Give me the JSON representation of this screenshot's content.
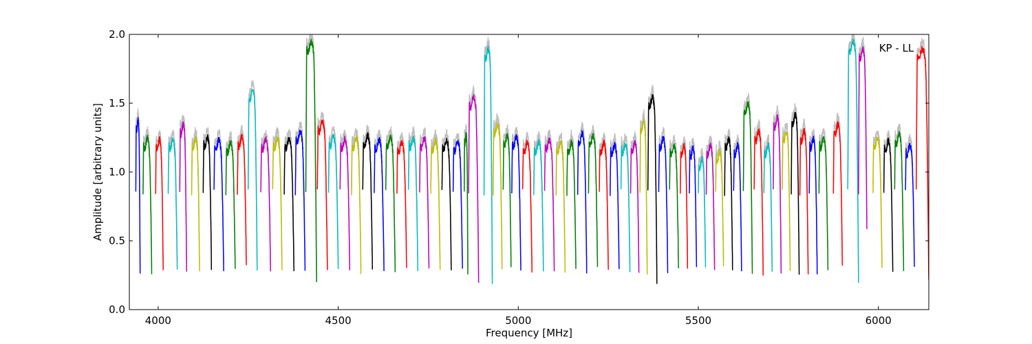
{
  "chart_data": {
    "type": "line",
    "title": "",
    "annotation": "KP - LL",
    "xlabel": "Frequency [MHz]",
    "ylabel": "Amplitude [arbitrary units]",
    "xlim": [
      3920,
      6140
    ],
    "ylim": [
      0.0,
      2.0
    ],
    "xticks": [
      4000,
      4500,
      5000,
      5500,
      6000
    ],
    "yticks": [
      0.0,
      0.5,
      1.0,
      1.5,
      2.0
    ],
    "xtick_labels": [
      "4000",
      "4500",
      "5000",
      "5500",
      "6000"
    ],
    "ytick_labels": [
      "0.0",
      "0.5",
      "1.0",
      "1.5",
      "2.0"
    ],
    "grid": false,
    "color_cycle": [
      "#0000ff",
      "#008000",
      "#ff0000",
      "#00bfbf",
      "#bf00bf",
      "#bfbf00",
      "#000000"
    ],
    "raw_color": "#bfbfbf",
    "series": [
      {
        "color": "#0000ff",
        "x": [
          3938,
          3950
        ],
        "y": [
          1.38,
          0.26
        ]
      },
      {
        "color": "#008000",
        "x": [
          3958,
          3982
        ],
        "y": [
          1.25,
          0.28
        ]
      },
      {
        "color": "#ff0000",
        "x": [
          3993,
          4014
        ],
        "y": [
          1.24,
          0.29
        ]
      },
      {
        "color": "#00bfbf",
        "x": [
          4028,
          4053
        ],
        "y": [
          1.24,
          0.29
        ]
      },
      {
        "color": "#bf00bf",
        "x": [
          4060,
          4079
        ],
        "y": [
          1.35,
          0.28
        ]
      },
      {
        "color": "#bfbf00",
        "x": [
          4093,
          4115
        ],
        "y": [
          1.25,
          0.28
        ]
      },
      {
        "color": "#000000",
        "x": [
          4125,
          4148
        ],
        "y": [
          1.26,
          0.29
        ]
      },
      {
        "color": "#0000ff",
        "x": [
          4155,
          4182
        ],
        "y": [
          1.24,
          0.29
        ]
      },
      {
        "color": "#008000",
        "x": [
          4188,
          4214
        ],
        "y": [
          1.22,
          0.28
        ]
      },
      {
        "color": "#ff0000",
        "x": [
          4220,
          4245
        ],
        "y": [
          1.26,
          0.3
        ]
      },
      {
        "color": "#00bfbf",
        "x": [
          4250,
          4275
        ],
        "y": [
          1.6,
          0.26
        ]
      },
      {
        "color": "#bf00bf",
        "x": [
          4285,
          4312
        ],
        "y": [
          1.24,
          0.3
        ]
      },
      {
        "color": "#bfbf00",
        "x": [
          4318,
          4344
        ],
        "y": [
          1.25,
          0.3
        ]
      },
      {
        "color": "#000000",
        "x": [
          4350,
          4377
        ],
        "y": [
          1.25,
          0.29
        ]
      },
      {
        "color": "#0000ff",
        "x": [
          4381,
          4408
        ],
        "y": [
          1.3,
          0.28
        ]
      },
      {
        "color": "#008000",
        "x": [
          4410,
          4440
        ],
        "y": [
          1.95,
          0.18
        ]
      },
      {
        "color": "#ff0000",
        "x": [
          4442,
          4470
        ],
        "y": [
          1.37,
          0.27
        ]
      },
      {
        "color": "#00bfbf",
        "x": [
          4473,
          4500
        ],
        "y": [
          1.26,
          0.3
        ]
      },
      {
        "color": "#bf00bf",
        "x": [
          4505,
          4532
        ],
        "y": [
          1.24,
          0.3
        ]
      },
      {
        "color": "#bfbf00",
        "x": [
          4537,
          4563
        ],
        "y": [
          1.25,
          0.28
        ]
      },
      {
        "color": "#000000",
        "x": [
          4568,
          4595
        ],
        "y": [
          1.27,
          0.29
        ]
      },
      {
        "color": "#0000ff",
        "x": [
          4600,
          4627
        ],
        "y": [
          1.24,
          0.29
        ]
      },
      {
        "color": "#008000",
        "x": [
          4632,
          4658
        ],
        "y": [
          1.26,
          0.28
        ]
      },
      {
        "color": "#ff0000",
        "x": [
          4663,
          4690
        ],
        "y": [
          1.22,
          0.29
        ]
      },
      {
        "color": "#00bfbf",
        "x": [
          4695,
          4721
        ],
        "y": [
          1.25,
          0.29
        ]
      },
      {
        "color": "#bf00bf",
        "x": [
          4726,
          4752
        ],
        "y": [
          1.25,
          0.28
        ]
      },
      {
        "color": "#bfbf00",
        "x": [
          4757,
          4783
        ],
        "y": [
          1.23,
          0.28
        ]
      },
      {
        "color": "#000000",
        "x": [
          4788,
          4814
        ],
        "y": [
          1.24,
          0.28
        ]
      },
      {
        "color": "#0000ff",
        "x": [
          4819,
          4845
        ],
        "y": [
          1.23,
          0.28
        ]
      },
      {
        "color": "#008000",
        "x": [
          4850,
          4860
        ],
        "y": [
          1.28,
          0.28
        ]
      },
      {
        "color": "#bf00bf",
        "x": [
          4862,
          4890
        ],
        "y": [
          1.55,
          0.2
        ]
      },
      {
        "color": "#00bfbf",
        "x": [
          4905,
          4928
        ],
        "y": [
          1.9,
          0.2
        ]
      },
      {
        "color": "#bfbf00",
        "x": [
          4930,
          4955
        ],
        "y": [
          1.35,
          0.3
        ]
      },
      {
        "color": "#008000",
        "x": [
          4958,
          4980
        ],
        "y": [
          1.27,
          0.3
        ]
      },
      {
        "color": "#0000ff",
        "x": [
          4982,
          5007
        ],
        "y": [
          1.26,
          0.29
        ]
      },
      {
        "color": "#ff0000",
        "x": [
          5012,
          5038
        ],
        "y": [
          1.22,
          0.29
        ]
      },
      {
        "color": "#00bfbf",
        "x": [
          5043,
          5070
        ],
        "y": [
          1.22,
          0.28
        ]
      },
      {
        "color": "#bf00bf",
        "x": [
          5073,
          5100
        ],
        "y": [
          1.24,
          0.29
        ]
      },
      {
        "color": "#bfbf00",
        "x": [
          5105,
          5130
        ],
        "y": [
          1.22,
          0.28
        ]
      },
      {
        "color": "#008000",
        "x": [
          5135,
          5160
        ],
        "y": [
          1.22,
          0.28
        ]
      },
      {
        "color": "#0000ff",
        "x": [
          5165,
          5190
        ],
        "y": [
          1.28,
          0.28
        ]
      },
      {
        "color": "#008000",
        "x": [
          5195,
          5220
        ],
        "y": [
          1.27,
          0.29
        ]
      },
      {
        "color": "#ff0000",
        "x": [
          5225,
          5250
        ],
        "y": [
          1.22,
          0.29
        ]
      },
      {
        "color": "#0000ff",
        "x": [
          5255,
          5280
        ],
        "y": [
          1.2,
          0.29
        ]
      },
      {
        "color": "#00bfbf",
        "x": [
          5285,
          5310
        ],
        "y": [
          1.21,
          0.28
        ]
      },
      {
        "color": "#bf00bf",
        "x": [
          5312,
          5335
        ],
        "y": [
          1.22,
          0.28
        ]
      },
      {
        "color": "#bfbf00",
        "x": [
          5338,
          5358
        ],
        "y": [
          1.38,
          0.27
        ]
      },
      {
        "color": "#000000",
        "x": [
          5360,
          5385
        ],
        "y": [
          1.55,
          0.2
        ]
      },
      {
        "color": "#0000ff",
        "x": [
          5390,
          5415
        ],
        "y": [
          1.25,
          0.28
        ]
      },
      {
        "color": "#008000",
        "x": [
          5420,
          5445
        ],
        "y": [
          1.2,
          0.3
        ]
      },
      {
        "color": "#ff0000",
        "x": [
          5450,
          5470
        ],
        "y": [
          1.2,
          0.31
        ]
      },
      {
        "color": "#0000ff",
        "x": [
          5475,
          5495
        ],
        "y": [
          1.18,
          0.3
        ]
      },
      {
        "color": "#00bfbf",
        "x": [
          5500,
          5520
        ],
        "y": [
          1.1,
          0.3
        ]
      },
      {
        "color": "#bf00bf",
        "x": [
          5522,
          5545
        ],
        "y": [
          1.2,
          0.3
        ]
      },
      {
        "color": "#bfbf00",
        "x": [
          5548,
          5570
        ],
        "y": [
          1.15,
          0.3
        ]
      },
      {
        "color": "#000000",
        "x": [
          5573,
          5595
        ],
        "y": [
          1.25,
          0.3
        ]
      },
      {
        "color": "#0000ff",
        "x": [
          5598,
          5620
        ],
        "y": [
          1.2,
          0.3
        ]
      },
      {
        "color": "#008000",
        "x": [
          5625,
          5650
        ],
        "y": [
          1.5,
          0.25
        ]
      },
      {
        "color": "#ff0000",
        "x": [
          5655,
          5680
        ],
        "y": [
          1.3,
          0.26
        ]
      },
      {
        "color": "#00bfbf",
        "x": [
          5682,
          5705
        ],
        "y": [
          1.2,
          0.28
        ]
      },
      {
        "color": "#bf00bf",
        "x": [
          5708,
          5730
        ],
        "y": [
          1.4,
          0.26
        ]
      },
      {
        "color": "#bfbf00",
        "x": [
          5733,
          5755
        ],
        "y": [
          1.3,
          0.28
        ]
      },
      {
        "color": "#000000",
        "x": [
          5758,
          5780
        ],
        "y": [
          1.42,
          0.27
        ]
      },
      {
        "color": "#ff0000",
        "x": [
          5782,
          5805
        ],
        "y": [
          1.3,
          0.27
        ]
      },
      {
        "color": "#0000ff",
        "x": [
          5808,
          5830
        ],
        "y": [
          1.25,
          0.28
        ]
      },
      {
        "color": "#008000",
        "x": [
          5835,
          5860
        ],
        "y": [
          1.25,
          0.28
        ]
      },
      {
        "color": "#ff0000",
        "x": [
          5875,
          5900
        ],
        "y": [
          1.35,
          0.3
        ]
      },
      {
        "color": "#00bfbf",
        "x": [
          5915,
          5945
        ],
        "y": [
          1.95,
          0.18
        ]
      },
      {
        "color": "#bf00bf",
        "x": [
          5945,
          5968
        ],
        "y": [
          1.9,
          0.6
        ]
      },
      {
        "color": "#bfbf00",
        "x": [
          5985,
          6010
        ],
        "y": [
          1.25,
          0.3
        ]
      },
      {
        "color": "#000000",
        "x": [
          6015,
          6040
        ],
        "y": [
          1.23,
          0.28
        ]
      },
      {
        "color": "#008000",
        "x": [
          6045,
          6070
        ],
        "y": [
          1.28,
          0.28
        ]
      },
      {
        "color": "#0000ff",
        "x": [
          6075,
          6100
        ],
        "y": [
          1.2,
          0.3
        ]
      },
      {
        "color": "#ff0000",
        "x": [
          6105,
          6140
        ],
        "y": [
          1.9,
          0.2
        ]
      }
    ]
  }
}
